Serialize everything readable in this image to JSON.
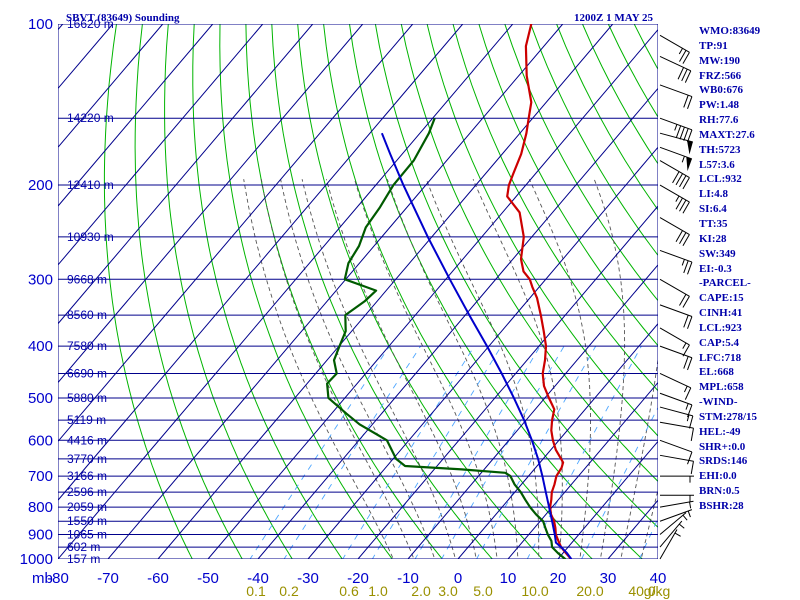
{
  "title_left": "SBVT (83649) Sounding",
  "title_right": "1200Z  1 MAY 25",
  "stats": [
    "WMO:83649",
    "TP:91",
    "MW:190",
    "FRZ:566",
    "WB0:676",
    "PW:1.48",
    "RH:77.6",
    "MAXT:27.6",
    "TH:5723",
    "L57:3.6",
    "LCL:932",
    "LI:4.8",
    "SI:6.4",
    "TT:35",
    "KI:28",
    "SW:349",
    "EI:-0.3",
    "-PARCEL-",
    "CAPE:15",
    "CINH:41",
    "LCL:923",
    "CAP:5.4",
    "LFC:718",
    "EL:668",
    "MPL:658",
    "-WIND-",
    "STM:278/15",
    "HEL:-49",
    "SHR+:0.0",
    "SRDS:146",
    "EHI:0.0",
    "BRN:0.5",
    "BSHR:28"
  ],
  "colors": {
    "grid": "#00008b",
    "dry_adiabat": "#00b400",
    "moist_adiabat": "#555555",
    "mixing_ratio": "#4da6ff",
    "temperature": "#cc0000",
    "dewpoint": "#005a00",
    "parcel": "#0000cc",
    "height_label": "#0000aa",
    "mixing_label": "#9a9000"
  },
  "chart_data": {
    "type": "line",
    "title": "SBVT (83649) Sounding",
    "subtitle": "1200Z  1 MAY 25",
    "xlabel": "",
    "ylabel": "mb",
    "pressure_ticks": [
      100,
      200,
      300,
      400,
      500,
      600,
      700,
      800,
      900,
      1000
    ],
    "ylim": [
      1000,
      100
    ],
    "y_scale": "log",
    "temperature_ticks": [
      "-80",
      "-70",
      "-60",
      "-50",
      "-40",
      "-30",
      "-20",
      "-10",
      "0",
      "10",
      "20",
      "30",
      "40"
    ],
    "xlim": [
      -80,
      40
    ],
    "mixing_ratio_labels": [
      "0.1",
      "0.2",
      "0.6",
      "1.0",
      "2.0",
      "3.0",
      "5.0",
      "10.0",
      "20.0",
      "40.0",
      "g/kg"
    ],
    "mixing_ratio_values": [
      0.1,
      0.2,
      0.6,
      1.0,
      2.0,
      3.0,
      5.0,
      10.0,
      20.0,
      40.0
    ],
    "height_labels": [
      {
        "p": 100,
        "label": "16620 m"
      },
      {
        "p": 150,
        "label": "14220 m"
      },
      {
        "p": 200,
        "label": "12410 m"
      },
      {
        "p": 250,
        "label": "10930 m"
      },
      {
        "p": 300,
        "label": "9668 m"
      },
      {
        "p": 350,
        "label": "8560 m"
      },
      {
        "p": 400,
        "label": "7580 m"
      },
      {
        "p": 450,
        "label": "6690 m"
      },
      {
        "p": 500,
        "label": "5880 m"
      },
      {
        "p": 550,
        "label": "5119 m"
      },
      {
        "p": 600,
        "label": "4416 m"
      },
      {
        "p": 650,
        "label": "3770 m"
      },
      {
        "p": 700,
        "label": "3166 m"
      },
      {
        "p": 750,
        "label": "2596 m"
      },
      {
        "p": 800,
        "label": "2059 m"
      },
      {
        "p": 850,
        "label": "1550 m"
      },
      {
        "p": 900,
        "label": "1065 m"
      },
      {
        "p": 950,
        "label": "602 m"
      },
      {
        "p": 1000,
        "label": "157 m"
      }
    ],
    "series": [
      {
        "name": "",
        "key": "temperature",
        "points": [
          [
            1010,
            23.4
          ],
          [
            975,
            20.6
          ],
          [
            950,
            18.6
          ],
          [
            925,
            17.0
          ],
          [
            900,
            15.4
          ],
          [
            875,
            14.2
          ],
          [
            850,
            12.8
          ],
          [
            825,
            11.0
          ],
          [
            800,
            9.6
          ],
          [
            775,
            8.6
          ],
          [
            750,
            7.4
          ],
          [
            725,
            6.6
          ],
          [
            700,
            5.6
          ],
          [
            675,
            5.2
          ],
          [
            660,
            4.6
          ],
          [
            650,
            3.6
          ],
          [
            625,
            1.0
          ],
          [
            600,
            -1.2
          ],
          [
            575,
            -3.2
          ],
          [
            550,
            -4.8
          ],
          [
            525,
            -6.2
          ],
          [
            500,
            -9.2
          ],
          [
            475,
            -12.2
          ],
          [
            450,
            -14.6
          ],
          [
            425,
            -16.4
          ],
          [
            400,
            -18.6
          ],
          [
            375,
            -21.6
          ],
          [
            350,
            -24.9
          ],
          [
            325,
            -28.6
          ],
          [
            310,
            -31.4
          ],
          [
            300,
            -33.2
          ],
          [
            290,
            -35.8
          ],
          [
            275,
            -38.4
          ],
          [
            250,
            -41.6
          ],
          [
            225,
            -46.6
          ],
          [
            210,
            -51.8
          ],
          [
            200,
            -53.4
          ],
          [
            190,
            -54.5
          ],
          [
            175,
            -56.2
          ],
          [
            160,
            -58.7
          ],
          [
            150,
            -60.8
          ],
          [
            140,
            -63.0
          ],
          [
            125,
            -68.4
          ],
          [
            110,
            -73.6
          ],
          [
            100,
            -76.3
          ]
        ]
      },
      {
        "name": "",
        "key": "dewpoint",
        "points": [
          [
            1010,
            22.4
          ],
          [
            975,
            19.0
          ],
          [
            950,
            16.8
          ],
          [
            925,
            15.6
          ],
          [
            900,
            13.8
          ],
          [
            875,
            12.2
          ],
          [
            850,
            10.6
          ],
          [
            825,
            8.0
          ],
          [
            800,
            5.6
          ],
          [
            775,
            3.4
          ],
          [
            750,
            1.2
          ],
          [
            725,
            -1.4
          ],
          [
            700,
            -3.6
          ],
          [
            690,
            -5.2
          ],
          [
            680,
            -14.5
          ],
          [
            670,
            -26.4
          ],
          [
            650,
            -29.4
          ],
          [
            600,
            -34.4
          ],
          [
            560,
            -42.6
          ],
          [
            535,
            -47.0
          ],
          [
            500,
            -53.3
          ],
          [
            470,
            -56.0
          ],
          [
            450,
            -55.8
          ],
          [
            425,
            -58.6
          ],
          [
            400,
            -59.9
          ],
          [
            375,
            -61.2
          ],
          [
            350,
            -64.0
          ],
          [
            330,
            -62.5
          ],
          [
            315,
            -62.0
          ],
          [
            310,
            -64.7
          ],
          [
            300,
            -70.2
          ],
          [
            280,
            -72.2
          ],
          [
            260,
            -73.0
          ],
          [
            240,
            -74.8
          ],
          [
            220,
            -75.4
          ],
          [
            200,
            -76.5
          ],
          [
            180,
            -76.6
          ],
          [
            160,
            -78.2
          ],
          [
            150,
            -79.6
          ]
        ]
      },
      {
        "name": "",
        "key": "parcel",
        "points": [
          [
            1010,
            23.4
          ],
          [
            975,
            20.8
          ],
          [
            950,
            18.6
          ],
          [
            932,
            16.8
          ],
          [
            900,
            15.2
          ],
          [
            850,
            12.4
          ],
          [
            800,
            9.4
          ],
          [
            750,
            6.2
          ],
          [
            700,
            2.8
          ],
          [
            650,
            -1.0
          ],
          [
            600,
            -5.4
          ],
          [
            550,
            -10.4
          ],
          [
            500,
            -16.2
          ],
          [
            450,
            -22.8
          ],
          [
            400,
            -30.4
          ],
          [
            350,
            -39.2
          ],
          [
            300,
            -49.2
          ],
          [
            250,
            -60.8
          ],
          [
            200,
            -74.5
          ],
          [
            175,
            -82.4
          ],
          [
            160,
            -87.6
          ]
        ]
      }
    ],
    "wind_barbs": [
      {
        "p": 105,
        "dir": 300,
        "spd": 25
      },
      {
        "p": 115,
        "dir": 295,
        "spd": 30
      },
      {
        "p": 130,
        "dir": 290,
        "spd": 20
      },
      {
        "p": 150,
        "dir": 290,
        "spd": 45
      },
      {
        "p": 160,
        "dir": 285,
        "spd": 50
      },
      {
        "p": 170,
        "dir": 290,
        "spd": 55
      },
      {
        "p": 180,
        "dir": 300,
        "spd": 40
      },
      {
        "p": 200,
        "dir": 300,
        "spd": 35
      },
      {
        "p": 230,
        "dir": 300,
        "spd": 30
      },
      {
        "p": 265,
        "dir": 290,
        "spd": 25
      },
      {
        "p": 300,
        "dir": 300,
        "spd": 20
      },
      {
        "p": 335,
        "dir": 290,
        "spd": 20
      },
      {
        "p": 370,
        "dir": 300,
        "spd": 15
      },
      {
        "p": 400,
        "dir": 290,
        "spd": 20
      },
      {
        "p": 450,
        "dir": 295,
        "spd": 15
      },
      {
        "p": 490,
        "dir": 290,
        "spd": 15
      },
      {
        "p": 520,
        "dir": 285,
        "spd": 15
      },
      {
        "p": 555,
        "dir": 280,
        "spd": 10
      },
      {
        "p": 600,
        "dir": 290,
        "spd": 10
      },
      {
        "p": 640,
        "dir": 280,
        "spd": 10
      },
      {
        "p": 700,
        "dir": 270,
        "spd": 5
      },
      {
        "p": 760,
        "dir": 270,
        "spd": 5
      },
      {
        "p": 800,
        "dir": 260,
        "spd": 5
      },
      {
        "p": 850,
        "dir": 250,
        "spd": 5
      },
      {
        "p": 900,
        "dir": 230,
        "spd": 5
      },
      {
        "p": 950,
        "dir": 220,
        "spd": 5
      },
      {
        "p": 1000,
        "dir": 210,
        "spd": 5
      }
    ]
  }
}
